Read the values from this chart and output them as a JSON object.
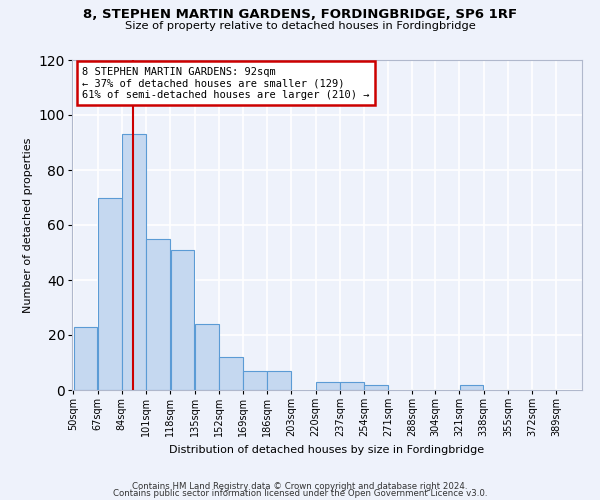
{
  "title": "8, STEPHEN MARTIN GARDENS, FORDINGBRIDGE, SP6 1RF",
  "subtitle": "Size of property relative to detached houses in Fordingbridge",
  "xlabel": "Distribution of detached houses by size in Fordingbridge",
  "ylabel": "Number of detached properties",
  "bin_labels": [
    "50sqm",
    "67sqm",
    "84sqm",
    "101sqm",
    "118sqm",
    "135sqm",
    "152sqm",
    "169sqm",
    "186sqm",
    "203sqm",
    "220sqm",
    "237sqm",
    "254sqm",
    "271sqm",
    "288sqm",
    "304sqm",
    "321sqm",
    "338sqm",
    "355sqm",
    "372sqm",
    "389sqm"
  ],
  "bin_edges": [
    50,
    67,
    84,
    101,
    118,
    135,
    152,
    169,
    186,
    203,
    220,
    237,
    254,
    271,
    288,
    304,
    321,
    338,
    355,
    372,
    389
  ],
  "bar_values": [
    23,
    70,
    93,
    55,
    51,
    24,
    12,
    7,
    7,
    0,
    3,
    3,
    2,
    0,
    0,
    0,
    2,
    0,
    0,
    0
  ],
  "bar_color": "#c5d8f0",
  "bar_edge_color": "#5b9bd5",
  "property_value": 92,
  "vline_color": "#cc0000",
  "ylim": [
    0,
    120
  ],
  "yticks": [
    0,
    20,
    40,
    60,
    80,
    100,
    120
  ],
  "annotation_line1": "8 STEPHEN MARTIN GARDENS: 92sqm",
  "annotation_line2": "← 37% of detached houses are smaller (129)",
  "annotation_line3": "61% of semi-detached houses are larger (210) →",
  "annotation_box_color": "#cc0000",
  "background_color": "#eef2fb",
  "grid_color": "#ffffff",
  "footer_line1": "Contains HM Land Registry data © Crown copyright and database right 2024.",
  "footer_line2": "Contains public sector information licensed under the Open Government Licence v3.0."
}
